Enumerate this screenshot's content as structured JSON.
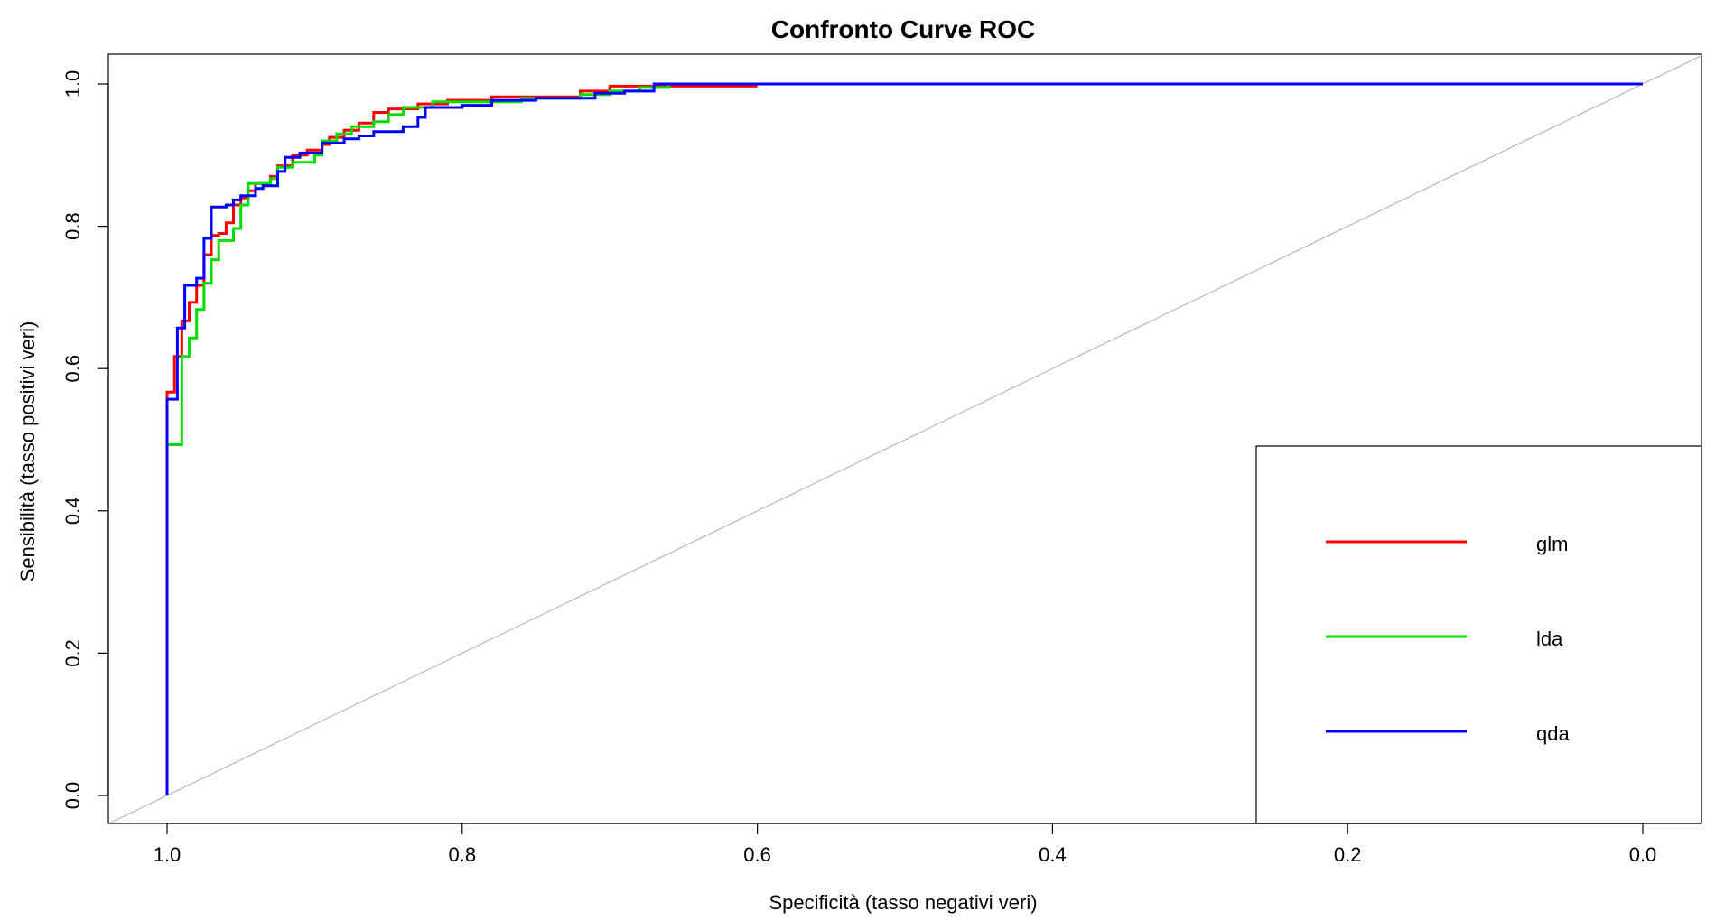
{
  "chart_data": {
    "type": "line",
    "title": "Confronto Curve ROC",
    "xlabel": "Specificità  (tasso negativi veri)",
    "ylabel": "Sensibilità  (tasso positivi veri)",
    "xlim": [
      1.0,
      0.0
    ],
    "ylim": [
      0.0,
      1.0
    ],
    "x_reversed": true,
    "x_ticks": [
      1.0,
      0.8,
      0.6,
      0.4,
      0.2,
      0.0
    ],
    "x_tick_labels": [
      "1.0",
      "0.8",
      "0.6",
      "0.4",
      "0.2",
      "0.0"
    ],
    "y_ticks": [
      0.0,
      0.2,
      0.4,
      0.6,
      0.8,
      1.0
    ],
    "y_tick_labels": [
      "0.0",
      "0.2",
      "0.4",
      "0.6",
      "0.8",
      "1.0"
    ],
    "grid": false,
    "legend_position": "bottom-right",
    "reference_line": {
      "from": [
        1.0,
        0.0
      ],
      "to": [
        0.0,
        1.0
      ],
      "color": "#aaaaaa"
    },
    "series": [
      {
        "name": "glm",
        "color": "#ff0000",
        "points": [
          [
            1.0,
            0.0
          ],
          [
            1.0,
            0.567
          ],
          [
            0.995,
            0.567
          ],
          [
            0.995,
            0.617
          ],
          [
            0.99,
            0.617
          ],
          [
            0.99,
            0.667
          ],
          [
            0.985,
            0.667
          ],
          [
            0.985,
            0.693
          ],
          [
            0.98,
            0.693
          ],
          [
            0.98,
            0.717
          ],
          [
            0.975,
            0.717
          ],
          [
            0.975,
            0.76
          ],
          [
            0.97,
            0.76
          ],
          [
            0.97,
            0.787
          ],
          [
            0.965,
            0.787
          ],
          [
            0.965,
            0.79
          ],
          [
            0.96,
            0.79
          ],
          [
            0.96,
            0.805
          ],
          [
            0.955,
            0.805
          ],
          [
            0.955,
            0.83
          ],
          [
            0.95,
            0.83
          ],
          [
            0.95,
            0.84
          ],
          [
            0.945,
            0.84
          ],
          [
            0.945,
            0.85
          ],
          [
            0.94,
            0.85
          ],
          [
            0.94,
            0.86
          ],
          [
            0.93,
            0.86
          ],
          [
            0.93,
            0.87
          ],
          [
            0.925,
            0.87
          ],
          [
            0.925,
            0.885
          ],
          [
            0.915,
            0.885
          ],
          [
            0.915,
            0.9
          ],
          [
            0.905,
            0.9
          ],
          [
            0.905,
            0.907
          ],
          [
            0.895,
            0.907
          ],
          [
            0.895,
            0.915
          ],
          [
            0.89,
            0.915
          ],
          [
            0.89,
            0.925
          ],
          [
            0.88,
            0.925
          ],
          [
            0.88,
            0.935
          ],
          [
            0.87,
            0.935
          ],
          [
            0.87,
            0.945
          ],
          [
            0.86,
            0.945
          ],
          [
            0.86,
            0.96
          ],
          [
            0.85,
            0.96
          ],
          [
            0.85,
            0.965
          ],
          [
            0.83,
            0.965
          ],
          [
            0.83,
            0.972
          ],
          [
            0.81,
            0.972
          ],
          [
            0.81,
            0.977
          ],
          [
            0.78,
            0.977
          ],
          [
            0.78,
            0.982
          ],
          [
            0.72,
            0.982
          ],
          [
            0.72,
            0.99
          ],
          [
            0.7,
            0.99
          ],
          [
            0.7,
            0.997
          ],
          [
            0.6,
            0.997
          ]
        ]
      },
      {
        "name": "lda",
        "color": "#00dd00",
        "points": [
          [
            1.0,
            0.0
          ],
          [
            1.0,
            0.493
          ],
          [
            0.99,
            0.493
          ],
          [
            0.99,
            0.617
          ],
          [
            0.985,
            0.617
          ],
          [
            0.985,
            0.643
          ],
          [
            0.98,
            0.643
          ],
          [
            0.98,
            0.683
          ],
          [
            0.975,
            0.683
          ],
          [
            0.975,
            0.72
          ],
          [
            0.97,
            0.72
          ],
          [
            0.97,
            0.753
          ],
          [
            0.965,
            0.753
          ],
          [
            0.965,
            0.78
          ],
          [
            0.955,
            0.78
          ],
          [
            0.955,
            0.797
          ],
          [
            0.95,
            0.797
          ],
          [
            0.95,
            0.83
          ],
          [
            0.945,
            0.83
          ],
          [
            0.945,
            0.86
          ],
          [
            0.93,
            0.86
          ],
          [
            0.93,
            0.867
          ],
          [
            0.925,
            0.867
          ],
          [
            0.925,
            0.883
          ],
          [
            0.915,
            0.883
          ],
          [
            0.915,
            0.89
          ],
          [
            0.9,
            0.89
          ],
          [
            0.9,
            0.9
          ],
          [
            0.895,
            0.9
          ],
          [
            0.895,
            0.92
          ],
          [
            0.885,
            0.92
          ],
          [
            0.885,
            0.93
          ],
          [
            0.875,
            0.93
          ],
          [
            0.875,
            0.94
          ],
          [
            0.86,
            0.94
          ],
          [
            0.86,
            0.947
          ],
          [
            0.85,
            0.947
          ],
          [
            0.85,
            0.957
          ],
          [
            0.84,
            0.957
          ],
          [
            0.84,
            0.967
          ],
          [
            0.82,
            0.967
          ],
          [
            0.82,
            0.975
          ],
          [
            0.76,
            0.975
          ],
          [
            0.76,
            0.98
          ],
          [
            0.72,
            0.98
          ],
          [
            0.72,
            0.985
          ],
          [
            0.7,
            0.985
          ],
          [
            0.7,
            0.99
          ],
          [
            0.68,
            0.99
          ],
          [
            0.68,
            0.995
          ],
          [
            0.66,
            0.995
          ],
          [
            0.66,
            1.0
          ],
          [
            0.0,
            1.0
          ]
        ]
      },
      {
        "name": "qda",
        "color": "#0000ff",
        "points": [
          [
            1.0,
            0.0
          ],
          [
            1.0,
            0.557
          ],
          [
            0.993,
            0.557
          ],
          [
            0.993,
            0.657
          ],
          [
            0.988,
            0.657
          ],
          [
            0.988,
            0.717
          ],
          [
            0.98,
            0.717
          ],
          [
            0.98,
            0.727
          ],
          [
            0.975,
            0.727
          ],
          [
            0.975,
            0.783
          ],
          [
            0.97,
            0.783
          ],
          [
            0.97,
            0.827
          ],
          [
            0.96,
            0.827
          ],
          [
            0.96,
            0.83
          ],
          [
            0.955,
            0.83
          ],
          [
            0.955,
            0.837
          ],
          [
            0.95,
            0.837
          ],
          [
            0.95,
            0.843
          ],
          [
            0.94,
            0.843
          ],
          [
            0.94,
            0.853
          ],
          [
            0.935,
            0.853
          ],
          [
            0.935,
            0.857
          ],
          [
            0.925,
            0.857
          ],
          [
            0.925,
            0.877
          ],
          [
            0.92,
            0.877
          ],
          [
            0.92,
            0.897
          ],
          [
            0.91,
            0.897
          ],
          [
            0.91,
            0.903
          ],
          [
            0.895,
            0.903
          ],
          [
            0.895,
            0.917
          ],
          [
            0.88,
            0.917
          ],
          [
            0.88,
            0.923
          ],
          [
            0.87,
            0.923
          ],
          [
            0.87,
            0.927
          ],
          [
            0.86,
            0.927
          ],
          [
            0.86,
            0.933
          ],
          [
            0.84,
            0.933
          ],
          [
            0.84,
            0.94
          ],
          [
            0.83,
            0.94
          ],
          [
            0.83,
            0.953
          ],
          [
            0.825,
            0.953
          ],
          [
            0.825,
            0.967
          ],
          [
            0.8,
            0.967
          ],
          [
            0.8,
            0.97
          ],
          [
            0.78,
            0.97
          ],
          [
            0.78,
            0.977
          ],
          [
            0.75,
            0.977
          ],
          [
            0.75,
            0.98
          ],
          [
            0.71,
            0.98
          ],
          [
            0.71,
            0.987
          ],
          [
            0.69,
            0.987
          ],
          [
            0.69,
            0.99
          ],
          [
            0.67,
            0.99
          ],
          [
            0.67,
            1.0
          ],
          [
            0.0,
            1.0
          ]
        ]
      }
    ]
  }
}
